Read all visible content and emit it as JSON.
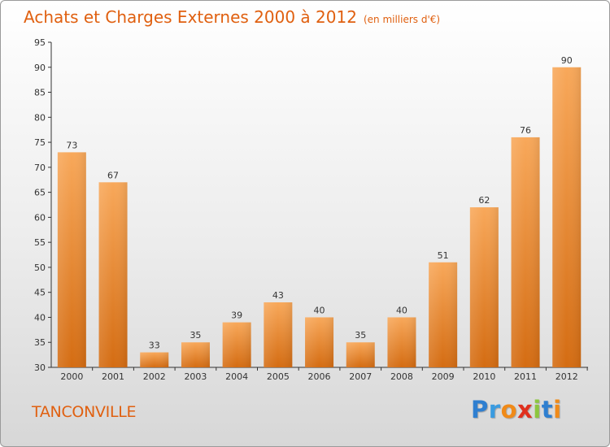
{
  "header": {
    "title": "Achats et Charges Externes 2000 à 2012",
    "unit": "(en milliers d'€)"
  },
  "footer": {
    "city": "TANCONVILLE",
    "logo_letters": [
      "P",
      "r",
      "o",
      "x",
      "i",
      "t",
      "i"
    ]
  },
  "colors": {
    "bar_top": "#f8a85a",
    "bar_bottom": "#d46c12",
    "accent": "#e06010"
  },
  "chart_data": {
    "type": "bar",
    "title": "Achats et Charges Externes 2000 à 2012",
    "subtitle": "(en milliers d'€)",
    "categories": [
      "2000",
      "2001",
      "2002",
      "2003",
      "2004",
      "2005",
      "2006",
      "2007",
      "2008",
      "2009",
      "2010",
      "2011",
      "2012"
    ],
    "values": [
      73,
      67,
      33,
      35,
      39,
      43,
      40,
      35,
      40,
      51,
      62,
      76,
      90
    ],
    "ylim": [
      30,
      95
    ],
    "yticks": [
      30,
      35,
      40,
      45,
      50,
      55,
      60,
      65,
      70,
      75,
      80,
      85,
      90,
      95
    ],
    "grid": false,
    "data_labels": true
  }
}
